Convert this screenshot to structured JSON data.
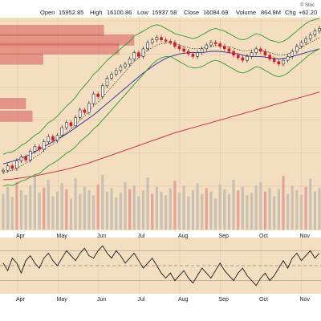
{
  "header": {
    "open_label": "Open",
    "open_value": "15952.85",
    "high_label": "High",
    "high_value": "16100.86",
    "low_label": "Low",
    "low_value": "15937.58",
    "close_label": "Close",
    "close_value": "16084.69",
    "volume_label": "Volume",
    "volume_value": "864.8M",
    "chg_label": "Chg",
    "chg_value": "+62.20",
    "watermark": "© Stoc"
  },
  "colors": {
    "background": "#ffffff",
    "price_panel_bg": "#f4dec0",
    "volume_panel_bg": "#f4dec0",
    "osc_panel_bg": "#f4dec0",
    "up_candle": "#2a2a2a",
    "down_candle": "#c8202a",
    "bollinger": "#2e9a2e",
    "ma_short": "#2a2aa0",
    "ma_long": "#c0282e",
    "ma_dotted": "#2b2b2b",
    "volume_bar": "#c9c0b4",
    "volume_bar_red": "#e5a29a",
    "volume_by_price": "#d65a5a",
    "osc_line": "#1a1a1a",
    "osc_fill": "#4a8c4a"
  },
  "chart_data": {
    "type": "line",
    "xlabel": "",
    "ylabel": "",
    "months": [
      "Apr",
      "May",
      "Jun",
      "Jul",
      "Aug",
      "Sep",
      "Oct",
      "Nov"
    ],
    "osc_months": [
      "Apr",
      "May",
      "Jun",
      "Jul",
      "Aug",
      "Sep",
      "Oct",
      "Nov"
    ],
    "price_ylim": [
      13600,
      16200
    ],
    "grid": true,
    "series": [
      {
        "values": [
          13850,
          13920,
          13880,
          14000,
          14060,
          14010,
          14150,
          14220,
          14180,
          14300,
          14380,
          14320,
          14400,
          14520,
          14600,
          14550,
          14680,
          14800,
          14760,
          14900,
          15050,
          15010,
          15180,
          15300,
          15360,
          15420,
          15480,
          15520,
          15600,
          15700,
          15640,
          15760,
          15860,
          15900,
          15940,
          15900,
          15880,
          15860,
          15800,
          15760,
          15720,
          15680,
          15640,
          15700,
          15760,
          15820,
          15860,
          15840,
          15800,
          15760,
          15720,
          15660,
          15620,
          15580,
          15640,
          15700,
          15760,
          15720,
          15660,
          15600,
          15560,
          15520,
          15580,
          15640,
          15720,
          15800,
          15860,
          15920,
          15980,
          16040,
          16080
        ]
      },
      {
        "values": [
          13950,
          13970,
          13990,
          14010,
          14040,
          14070,
          14100,
          14140,
          14180,
          14220,
          14260,
          14300,
          14340,
          14380,
          14420,
          14470,
          14520,
          14570,
          14620,
          14670,
          14720,
          14780,
          14840,
          14900,
          14960,
          15020,
          15080,
          15140,
          15200,
          15260,
          15320,
          15380,
          15430,
          15480,
          15530,
          15570,
          15610,
          15640,
          15660,
          15680,
          15690,
          15700,
          15700,
          15700,
          15700,
          15710,
          15720,
          15720,
          15720,
          15710,
          15700,
          15690,
          15680,
          15660,
          15650,
          15640,
          15640,
          15640,
          15630,
          15620,
          15610,
          15600,
          15610,
          15620,
          15640,
          15660,
          15680,
          15700,
          15720,
          15740,
          15760
        ]
      },
      {
        "values": [
          13700,
          13705,
          13710,
          13720,
          13730,
          13740,
          13750,
          13760,
          13775,
          13790,
          13805,
          13820,
          13835,
          13850,
          13865,
          13885,
          13905,
          13925,
          13945,
          13965,
          13990,
          14015,
          14040,
          14065,
          14090,
          14115,
          14140,
          14165,
          14190,
          14215,
          14240,
          14265,
          14290,
          14315,
          14340,
          14365,
          14390,
          14415,
          14440,
          14460,
          14480,
          14500,
          14520,
          14540,
          14560,
          14580,
          14600,
          14620,
          14640,
          14660,
          14680,
          14700,
          14720,
          14740,
          14760,
          14780,
          14800,
          14820,
          14840,
          14860,
          14880,
          14900,
          14920,
          14940,
          14960,
          14980,
          15000,
          15020,
          15040,
          15060,
          15080
        ]
      },
      {
        "values": [
          14100,
          14130,
          14140,
          14180,
          14240,
          14280,
          14340,
          14400,
          14440,
          14520,
          14600,
          14640,
          14700,
          14780,
          14860,
          14920,
          15000,
          15100,
          15180,
          15260,
          15360,
          15420,
          15500,
          15580,
          15640,
          15700,
          15760,
          15820,
          15880,
          15960,
          16000,
          16040,
          16080,
          16120,
          16140,
          16120,
          16080,
          16040,
          16000,
          15980,
          15960,
          15940,
          15920,
          15940,
          15980,
          16020,
          16060,
          16080,
          16060,
          16040,
          16000,
          15960,
          15920,
          15900,
          15920,
          15960,
          16000,
          15980,
          15940,
          15900,
          15880,
          15860,
          15880,
          15920,
          15980,
          16040,
          16100,
          16160,
          16200,
          16220,
          16240
        ]
      },
      {
        "values": [
          13600,
          13620,
          13610,
          13640,
          13680,
          13700,
          13740,
          13780,
          13800,
          13860,
          13920,
          13960,
          14000,
          14060,
          14120,
          14160,
          14220,
          14300,
          14360,
          14420,
          14500,
          14560,
          14640,
          14720,
          14800,
          14880,
          14960,
          15040,
          15120,
          15200,
          15280,
          15360,
          15440,
          15520,
          15580,
          15620,
          15640,
          15640,
          15600,
          15560,
          15520,
          15480,
          15460,
          15460,
          15480,
          15520,
          15560,
          15580,
          15560,
          15520,
          15480,
          15440,
          15400,
          15380,
          15400,
          15440,
          15480,
          15460,
          15420,
          15380,
          15340,
          15320,
          15340,
          15380,
          15440,
          15500,
          15560,
          15620,
          15680,
          15720,
          15760
        ]
      },
      {
        "values": [
          13800,
          13830,
          13850,
          13880,
          13920,
          13960,
          14000,
          14060,
          14100,
          14160,
          14220,
          14260,
          14320,
          14380,
          14440,
          14500,
          14560,
          14640,
          14700,
          14780,
          14860,
          14920,
          15000,
          15080,
          15160,
          15240,
          15320,
          15400,
          15480,
          15560,
          15620,
          15680,
          15740,
          15780,
          15820,
          15840,
          15850,
          15850,
          15840,
          15820,
          15800,
          15780,
          15760,
          15760,
          15770,
          15780,
          15800,
          15810,
          15810,
          15800,
          15790,
          15770,
          15750,
          15730,
          15730,
          15740,
          15750,
          15740,
          15720,
          15700,
          15680,
          15660,
          15660,
          15680,
          15710,
          15740,
          15780,
          15820,
          15860,
          15900,
          15940
        ]
      }
    ],
    "volume": [
      60,
      72,
      55,
      80,
      66,
      58,
      74,
      90,
      62,
      70,
      84,
      56,
      64,
      78,
      68,
      52,
      86,
      60,
      72,
      66,
      58,
      76,
      92,
      64,
      70,
      54,
      62,
      80,
      68,
      74,
      56,
      66,
      88,
      60,
      72,
      64,
      58,
      70,
      82,
      62,
      74,
      56,
      66,
      78,
      60,
      70,
      64,
      52,
      76,
      68,
      60,
      84,
      66,
      72,
      58,
      62,
      74,
      80,
      64,
      70,
      56,
      68,
      90,
      60,
      74,
      66,
      58,
      72,
      86,
      64,
      70
    ],
    "volume_red_idx": [
      3,
      9,
      14,
      21,
      28,
      33,
      38,
      45,
      52,
      58,
      62,
      67
    ],
    "oscillator": [
      0.1,
      -0.2,
      0.3,
      0.1,
      -0.3,
      0.2,
      0.4,
      0.1,
      -0.1,
      0.3,
      0.5,
      0.2,
      0.0,
      0.3,
      0.6,
      0.4,
      0.2,
      0.5,
      0.7,
      0.4,
      0.3,
      0.6,
      0.8,
      0.5,
      0.3,
      0.6,
      0.4,
      0.1,
      0.3,
      0.5,
      0.2,
      -0.1,
      0.1,
      0.3,
      0.0,
      -0.3,
      -0.5,
      -0.3,
      -0.6,
      -0.4,
      -0.2,
      -0.5,
      -0.7,
      -0.4,
      -0.1,
      -0.3,
      -0.5,
      -0.2,
      0.1,
      -0.2,
      -0.4,
      -0.6,
      -0.3,
      -0.1,
      -0.4,
      -0.6,
      -0.8,
      -0.5,
      -0.3,
      -0.6,
      -0.4,
      -0.1,
      0.2,
      -0.1,
      0.3,
      0.5,
      0.2,
      0.4,
      0.6,
      0.3,
      0.5
    ],
    "volume_by_price": [
      {
        "price": 16050,
        "volume": 0.48
      },
      {
        "price": 15900,
        "volume": 0.62
      },
      {
        "price": 15760,
        "volume": 0.55
      },
      {
        "price": 15600,
        "volume": 0.2
      },
      {
        "price": 14900,
        "volume": 0.12
      },
      {
        "price": 14700,
        "volume": 0.15
      }
    ]
  }
}
